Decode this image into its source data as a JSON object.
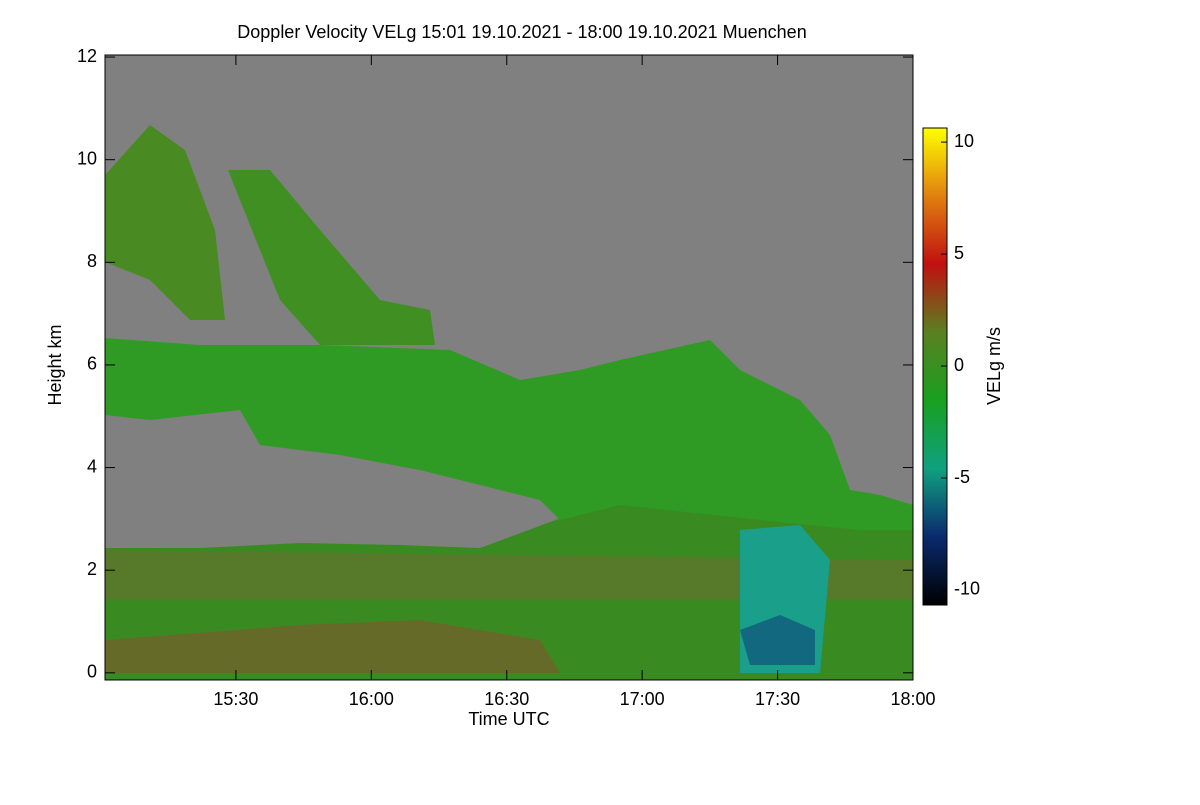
{
  "chart_data": {
    "type": "heatmap",
    "title": "Doppler Velocity VELg   15:01 19.10.2021 - 18:00 19.10.2021 Muenchen",
    "xlabel": "Time UTC",
    "ylabel": "Height km",
    "xlim": [
      901,
      1080
    ],
    "xticks": [
      {
        "value": 930,
        "label": "15:30"
      },
      {
        "value": 960,
        "label": "16:00"
      },
      {
        "value": 990,
        "label": "16:30"
      },
      {
        "value": 1020,
        "label": "17:00"
      },
      {
        "value": 1050,
        "label": "17:30"
      },
      {
        "value": 1080,
        "label": "18:00"
      }
    ],
    "ylim": [
      -0.14,
      12.04
    ],
    "yticks": [
      0,
      2,
      4,
      6,
      8,
      10,
      12
    ],
    "background": "#808080",
    "colorbar": {
      "label": "VELg m/s",
      "lim": [
        -10.67,
        10.63
      ],
      "ticks": [
        -10,
        -5,
        0,
        5,
        10
      ],
      "colors": [
        "#000000",
        "#0a2a6e",
        "#10a080",
        "#18a020",
        "#5a8020",
        "#c01010",
        "#e08010",
        "#ffff00"
      ]
    }
  }
}
